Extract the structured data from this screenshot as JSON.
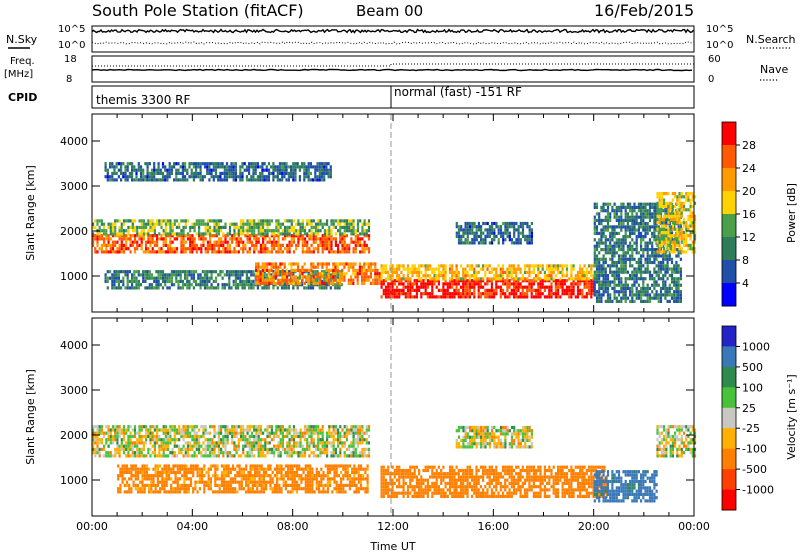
{
  "header": {
    "title": "South Pole Station (fitACF)",
    "beam": "Beam 00",
    "date": "16/Feb/2015"
  },
  "panels": {
    "nsky": {
      "label": "N.Sky",
      "left_ticks": [
        "10^5",
        "10^0"
      ],
      "right_ticks": [
        "10^5",
        "10^0"
      ],
      "right_label": "N.Search"
    },
    "freq": {
      "label_line1": "Freq.",
      "label_line2": "[MHz]",
      "left_ticks": [
        "18",
        "8"
      ],
      "right_ticks": [
        "60",
        "0"
      ],
      "right_label": "Nave"
    },
    "cpid": {
      "label": "CPID",
      "modes": [
        "themis 3300 RF",
        "normal (fast) -151 RF"
      ]
    }
  },
  "chart_data": [
    {
      "type": "heatmap",
      "name": "power",
      "xlabel": "",
      "ylabel": "Slant Range [km]",
      "y_ticks": [
        "1000",
        "2000",
        "3000",
        "4000"
      ],
      "ylim": [
        200,
        4600
      ],
      "colorbar": {
        "label": "Power [dB]",
        "ticks": [
          "28",
          "24",
          "20",
          "16",
          "12",
          "8",
          "4"
        ],
        "colors": [
          "#ff0000",
          "#ff5a00",
          "#ff9a00",
          "#ffd200",
          "#4aa04a",
          "#2e7d5a",
          "#1f4fa8",
          "#0000ff"
        ]
      },
      "bands": [
        {
          "t0": 0.0,
          "t1": 11.0,
          "r0": 1500,
          "r1": 1900,
          "level": 24
        },
        {
          "t0": 0.0,
          "t1": 11.0,
          "r0": 1900,
          "r1": 2200,
          "level": 12
        },
        {
          "t0": 0.5,
          "t1": 9.5,
          "r0": 3100,
          "r1": 3500,
          "level": 6
        },
        {
          "t0": 0.5,
          "t1": 10.0,
          "r0": 700,
          "r1": 1100,
          "level": 8
        },
        {
          "t0": 6.5,
          "t1": 11.5,
          "r0": 800,
          "r1": 1300,
          "level": 22
        },
        {
          "t0": 11.5,
          "t1": 20.0,
          "r0": 500,
          "r1": 900,
          "level": 28
        },
        {
          "t0": 11.5,
          "t1": 20.0,
          "r0": 900,
          "r1": 1200,
          "level": 18
        },
        {
          "t0": 14.5,
          "t1": 17.5,
          "r0": 1700,
          "r1": 2200,
          "level": 6
        },
        {
          "t0": 20.0,
          "t1": 23.5,
          "r0": 400,
          "r1": 2600,
          "level": 7
        },
        {
          "t0": 22.5,
          "t1": 24.0,
          "r0": 1500,
          "r1": 2800,
          "level": 16
        }
      ]
    },
    {
      "type": "heatmap",
      "name": "velocity",
      "xlabel": "Time UT",
      "ylabel": "Slant Range [km]",
      "x_ticks": [
        "00:00",
        "04:00",
        "08:00",
        "12:00",
        "16:00",
        "20:00",
        "00:00"
      ],
      "y_ticks": [
        "1000",
        "2000",
        "3000",
        "4000"
      ],
      "ylim": [
        200,
        4600
      ],
      "colorbar": {
        "label": "Velocity [m s⁻¹]",
        "ticks": [
          "1000",
          "500",
          "100",
          "25",
          "-25",
          "-100",
          "-500",
          "-1000"
        ],
        "colors": [
          "#2323c8",
          "#3a78b8",
          "#2f8a4e",
          "#48c23a",
          "#c8c8c0",
          "#ffb000",
          "#ff8000",
          "#ff4000",
          "#ff0000"
        ]
      },
      "bands": [
        {
          "t0": 0.0,
          "t1": 11.0,
          "r0": 1500,
          "r1": 2200,
          "level": 0
        },
        {
          "t0": 1.0,
          "t1": 11.0,
          "r0": 700,
          "r1": 1300,
          "level": -200
        },
        {
          "t0": 11.5,
          "t1": 20.5,
          "r0": 600,
          "r1": 1300,
          "level": -300
        },
        {
          "t0": 14.5,
          "t1": 17.5,
          "r0": 1700,
          "r1": 2200,
          "level": 0
        },
        {
          "t0": 20.0,
          "t1": 22.5,
          "r0": 500,
          "r1": 1200,
          "level": 600
        },
        {
          "t0": 22.5,
          "t1": 24.0,
          "r0": 1500,
          "r1": 2200,
          "level": 0
        }
      ]
    }
  ]
}
